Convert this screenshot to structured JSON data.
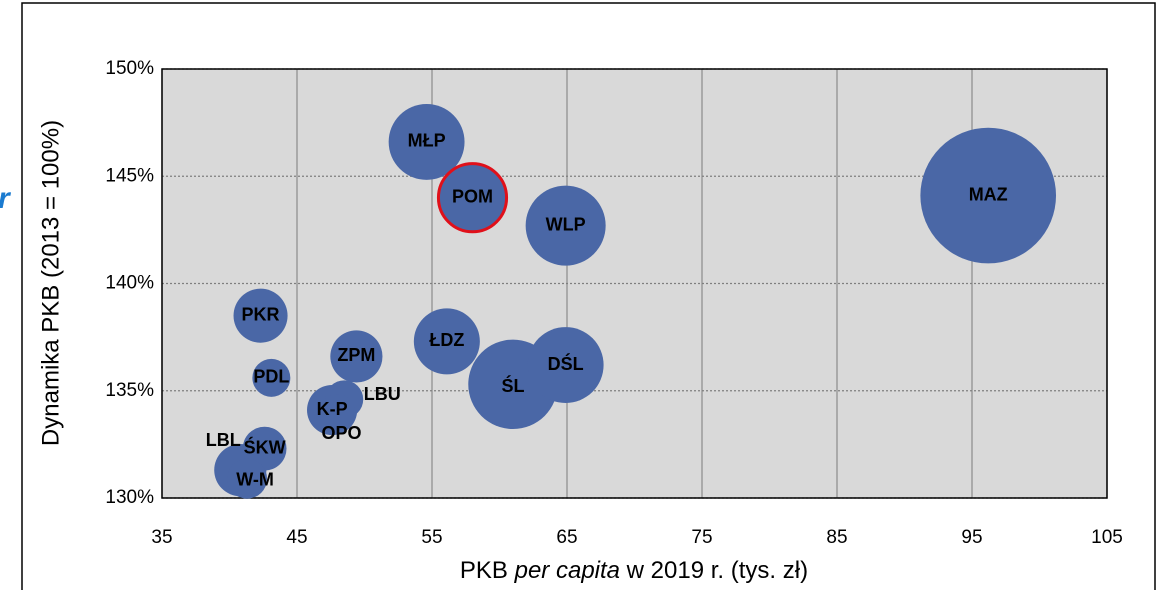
{
  "chart_data": {
    "type": "bubble",
    "fragment": "r",
    "y_label": "Dynamika PKB (2013 = 100%)",
    "x_label": [
      "PKB ",
      "per capita",
      " w 2019 r. (tys. zł)"
    ],
    "categories": [
      "MAZ",
      "ŚL",
      "WLP",
      "MŁP",
      "DŚL",
      "POM",
      "ŁDZ",
      "PKR",
      "ZPM",
      "K-P",
      "LBL",
      "ŚKW",
      "W-M",
      "PDL",
      "LBU",
      "OPO"
    ],
    "x": [
      96.2,
      61.0,
      64.9,
      54.6,
      64.9,
      58.0,
      56.1,
      42.3,
      49.4,
      47.6,
      40.8,
      42.6,
      41.3,
      43.1,
      48.5,
      48.0
    ],
    "values": [
      144.1,
      135.3,
      142.7,
      146.6,
      136.2,
      144.0,
      137.3,
      138.5,
      136.6,
      134.1,
      131.3,
      132.3,
      130.9,
      135.6,
      134.6,
      134.0
    ],
    "sizes": [
      46,
      20,
      16,
      14.4,
      14.4,
      11.6,
      10.9,
      7.3,
      6.8,
      6.3,
      6.8,
      4.8,
      4,
      3.6,
      3.6,
      3.2
    ],
    "color": "#4a67a6",
    "highlight": [
      5
    ],
    "highlight_color": "#e0101a",
    "xlim": [
      35,
      105
    ],
    "xticks": [
      35,
      45,
      55,
      65,
      75,
      85,
      95,
      105
    ],
    "ylim": [
      130,
      150
    ],
    "yticks": [
      {
        "value": 130,
        "label": "130%"
      },
      {
        "value": 135,
        "label": "135%"
      },
      {
        "value": 140,
        "label": "140%"
      },
      {
        "value": 145,
        "label": "145%"
      },
      {
        "value": 150,
        "label": "150%"
      }
    ],
    "grid": true
  }
}
